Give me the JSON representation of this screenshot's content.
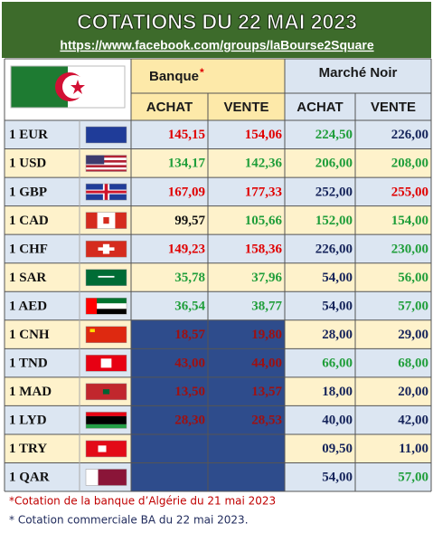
{
  "header": {
    "title": "COTATIONS DU 22 MAI 2023",
    "url": "https://www.facebook.com/groups/laBourse2Square"
  },
  "table": {
    "groups": [
      {
        "label": "Banque",
        "marker": "*"
      },
      {
        "label": "Marché Noir"
      }
    ],
    "columns": [
      "ACHAT",
      "VENTE",
      "ACHAT",
      "VENTE"
    ],
    "rows": [
      {
        "currency": "1 EUR",
        "values": [
          "145,15",
          "154,06",
          "224,50",
          "226,00"
        ]
      },
      {
        "currency": "1 USD",
        "values": [
          "134,17",
          "142,36",
          "206,00",
          "208,00"
        ]
      },
      {
        "currency": "1 GBP",
        "values": [
          "167,09",
          "177,33",
          "252,00",
          "255,00"
        ]
      },
      {
        "currency": "1 CAD",
        "values": [
          "99,57",
          "105,66",
          "152,00",
          "154,00"
        ]
      },
      {
        "currency": "1 CHF",
        "values": [
          "149,23",
          "158,36",
          "226,00",
          "230,00"
        ]
      },
      {
        "currency": "1 SAR",
        "values": [
          "35,78",
          "37,96",
          "54,00",
          "56,00"
        ]
      },
      {
        "currency": "1 AED",
        "values": [
          "36,54",
          "38,77",
          "54,00",
          "57,00"
        ]
      },
      {
        "currency": "1 CNH",
        "values": [
          "18,57",
          "19,80",
          "28,00",
          "29,00"
        ]
      },
      {
        "currency": "1 TND",
        "values": [
          "43,00",
          "44,00",
          "66,00",
          "68,00"
        ]
      },
      {
        "currency": "1 MAD",
        "values": [
          "13,50",
          "13,57",
          "18,00",
          "20,00"
        ]
      },
      {
        "currency": "1 LYD",
        "values": [
          "28,30",
          "28,53",
          "40,00",
          "42,00"
        ]
      },
      {
        "currency": "1 TRY",
        "values": [
          null,
          null,
          "09,50",
          "11,00"
        ]
      },
      {
        "currency": "1 QAR",
        "values": [
          null,
          null,
          "54,00",
          "57,00"
        ]
      }
    ]
  },
  "footnotes": [
    "*Cotation de la banque d’Algérie du 21 mai 2023",
    "* Cotation commerciale BA du 22 mai 2023."
  ]
}
